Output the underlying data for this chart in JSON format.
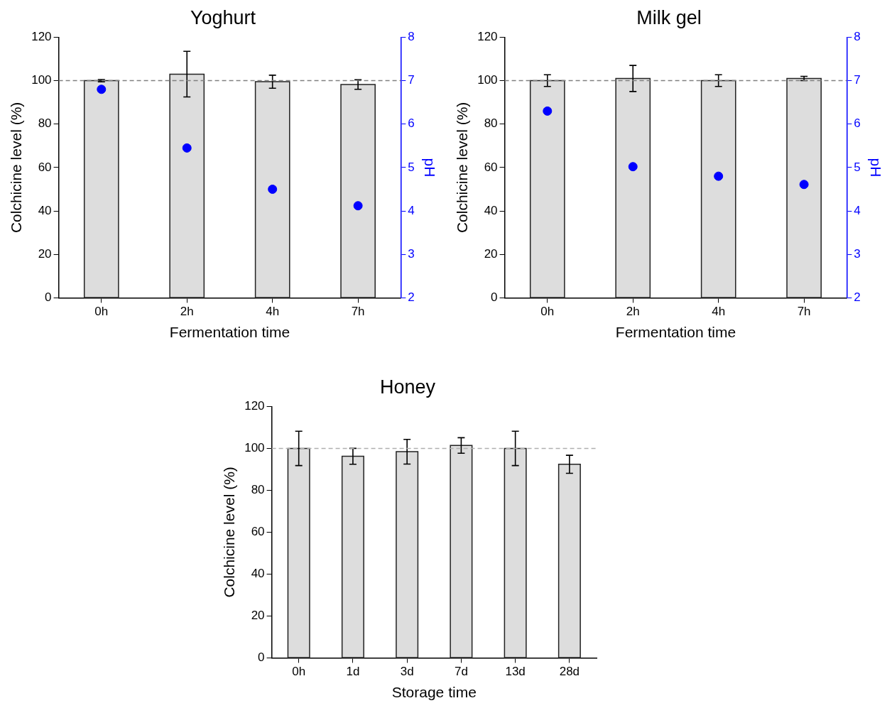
{
  "chart_data": [
    {
      "type": "bar",
      "title": "Yoghurt",
      "xlabel": "Fermentation time",
      "ylabel": "Colchicine level (%)",
      "y2label": "pH",
      "categories": [
        "0h",
        "2h",
        "4h",
        "7h"
      ],
      "ylim": [
        0,
        120
      ],
      "yticks": [
        0,
        20,
        40,
        60,
        80,
        100,
        120
      ],
      "y2lim": [
        2,
        8
      ],
      "y2ticks": [
        2,
        3,
        4,
        5,
        6,
        7,
        8
      ],
      "grid": false,
      "legend": false,
      "series": [
        {
          "color": "#dddddd",
          "values": [
            100,
            103,
            99.5,
            98.2
          ],
          "errors": [
            0.5,
            10.5,
            3,
            2.2
          ]
        },
        {
          "type": "scatter",
          "axis": "y2",
          "color": "#0000ff",
          "marker": "circle",
          "x": [
            "0h",
            "2h",
            "4h",
            "7h"
          ],
          "values": [
            6.8,
            5.45,
            4.5,
            4.12
          ]
        }
      ],
      "ref_lines": [
        {
          "axis": "y",
          "value": 100,
          "color": "#808080",
          "line_style": "dashed"
        }
      ]
    },
    {
      "type": "bar",
      "title": "Milk gel",
      "xlabel": "Fermentation time",
      "ylabel": "Colchicine level (%)",
      "y2label": "pH",
      "categories": [
        "0h",
        "2h",
        "4h",
        "7h"
      ],
      "ylim": [
        0,
        120
      ],
      "yticks": [
        0,
        20,
        40,
        60,
        80,
        100,
        120
      ],
      "y2lim": [
        2,
        8
      ],
      "y2ticks": [
        2,
        3,
        4,
        5,
        6,
        7,
        8
      ],
      "grid": false,
      "legend": false,
      "series": [
        {
          "color": "#dddddd",
          "values": [
            100,
            101,
            100,
            101
          ],
          "errors": [
            2.7,
            6,
            2.7,
            1
          ]
        },
        {
          "type": "scatter",
          "axis": "y2",
          "color": "#0000ff",
          "marker": "circle",
          "x": [
            "0h",
            "2h",
            "4h",
            "7h"
          ],
          "values": [
            6.3,
            5.02,
            4.8,
            4.61
          ]
        }
      ],
      "ref_lines": [
        {
          "axis": "y",
          "value": 100,
          "color": "#808080",
          "line_style": "dashed"
        }
      ]
    },
    {
      "type": "bar",
      "title": "Honey",
      "xlabel": "Storage time",
      "ylabel": "Colchicine level (%)",
      "categories": [
        "0h",
        "1d",
        "3d",
        "7d",
        "13d",
        "28d"
      ],
      "ylim": [
        0,
        120
      ],
      "yticks": [
        0,
        20,
        40,
        60,
        80,
        100,
        120
      ],
      "grid": false,
      "legend": false,
      "series": [
        {
          "color": "#dddddd",
          "values": [
            100,
            96.2,
            98.4,
            101.4,
            100,
            92.4
          ],
          "errors": [
            8.2,
            3.8,
            5.9,
            3.7,
            8.2,
            4.3
          ]
        }
      ],
      "ref_lines": [
        {
          "axis": "y",
          "value": 100,
          "color": "#b0b0b0",
          "line_style": "dashed"
        }
      ]
    }
  ]
}
